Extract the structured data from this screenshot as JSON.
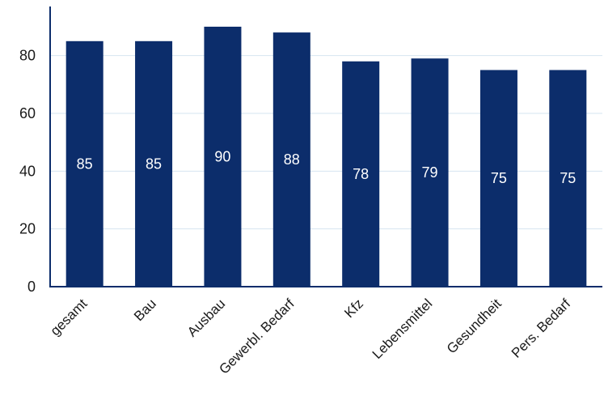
{
  "chart_data": {
    "type": "bar",
    "title": "",
    "xlabel": "",
    "ylabel": "",
    "categories": [
      "gesamt",
      "Bau",
      "Ausbau",
      "Gewerbl. Bedarf",
      "Kfz",
      "Lebensmittel",
      "Gesundheit",
      "Pers. Bedarf"
    ],
    "values": [
      85,
      85,
      90,
      88,
      78,
      79,
      75,
      75
    ],
    "ylim": [
      0,
      97
    ],
    "yticks": [
      0,
      20,
      40,
      60,
      80
    ],
    "grid": true,
    "legend": "none",
    "colors": {
      "bar": "#0c2d6b",
      "grid": "#d6e4f0",
      "axis": "#0c2d6b",
      "label": "#ffffff"
    }
  }
}
